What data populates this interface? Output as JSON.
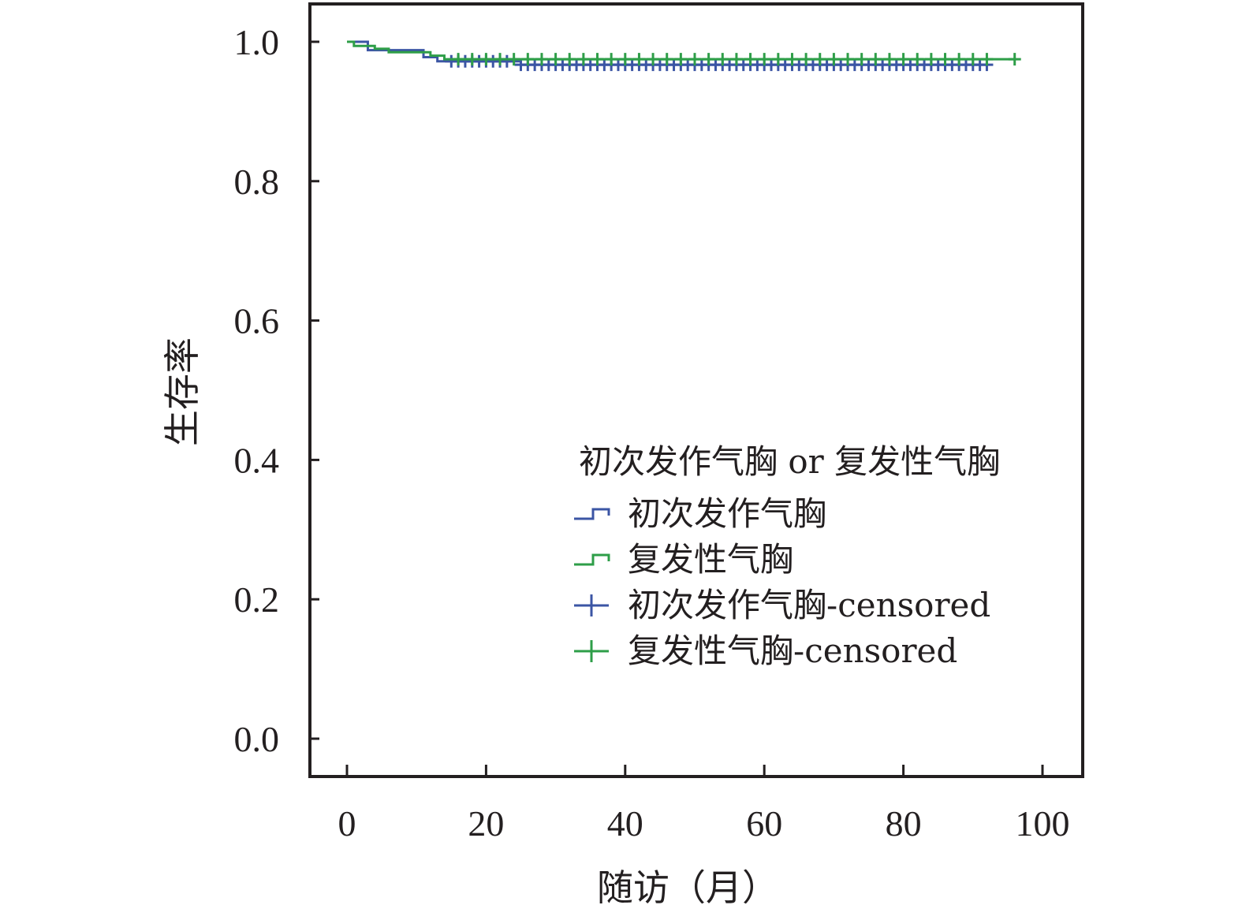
{
  "chart_data": {
    "type": "line",
    "subtype": "kaplan-meier",
    "xlabel": "随访（月）",
    "ylabel": "生存率",
    "xlim": [
      -3,
      105
    ],
    "ylim": [
      -0.05,
      1.05
    ],
    "xticks": [
      "0",
      "20",
      "40",
      "60",
      "80",
      "100"
    ],
    "yticks": [
      "0.0",
      "0.2",
      "0.4",
      "0.6",
      "0.8",
      "1.0"
    ],
    "grid": false,
    "legend": {
      "position": "lower-right",
      "title": "初次发作气胸 or 复发性气胸",
      "entries": [
        {
          "label": "初次发作气胸",
          "marker": "step",
          "color": "#3b55a4"
        },
        {
          "label": "复发性气胸",
          "marker": "step",
          "color": "#2e9e48"
        },
        {
          "label": "初次发作气胸-censored",
          "marker": "plus",
          "color": "#3b55a4"
        },
        {
          "label": "复发性气胸-censored",
          "marker": "plus",
          "color": "#2e9e48"
        }
      ]
    },
    "series": [
      {
        "name": "初次发作气胸",
        "color": "#3b55a4",
        "steps": [
          [
            0,
            1.0
          ],
          [
            3,
            0.988
          ],
          [
            11,
            0.978
          ],
          [
            13,
            0.972
          ],
          [
            25,
            0.967
          ],
          [
            92,
            0.967
          ]
        ],
        "censored_x": [
          15,
          16,
          17,
          18,
          19,
          20,
          21,
          22,
          23,
          25,
          26,
          27,
          28,
          29,
          30,
          31,
          32,
          33,
          34,
          35,
          36,
          37,
          38,
          39,
          40,
          41,
          42,
          43,
          44,
          45,
          46,
          47,
          48,
          49,
          50,
          51,
          52,
          53,
          54,
          55,
          56,
          57,
          58,
          59,
          60,
          61,
          62,
          63,
          64,
          65,
          66,
          67,
          68,
          69,
          70,
          71,
          72,
          73,
          74,
          75,
          76,
          77,
          78,
          79,
          80,
          81,
          82,
          83,
          84,
          85,
          86,
          87,
          88,
          89,
          90,
          91,
          92
        ]
      },
      {
        "name": "复发性气胸",
        "color": "#2e9e48",
        "steps": [
          [
            0,
            1.0
          ],
          [
            1,
            0.994
          ],
          [
            4,
            0.99
          ],
          [
            6,
            0.985
          ],
          [
            12,
            0.98
          ],
          [
            14,
            0.975
          ],
          [
            96,
            0.975
          ]
        ],
        "censored_x": [
          16,
          18,
          20,
          22,
          24,
          26,
          28,
          30,
          32,
          34,
          36,
          38,
          40,
          42,
          44,
          46,
          48,
          50,
          52,
          54,
          56,
          58,
          60,
          62,
          64,
          66,
          68,
          70,
          72,
          74,
          76,
          78,
          80,
          82,
          84,
          86,
          88,
          90,
          92,
          96
        ]
      }
    ]
  }
}
